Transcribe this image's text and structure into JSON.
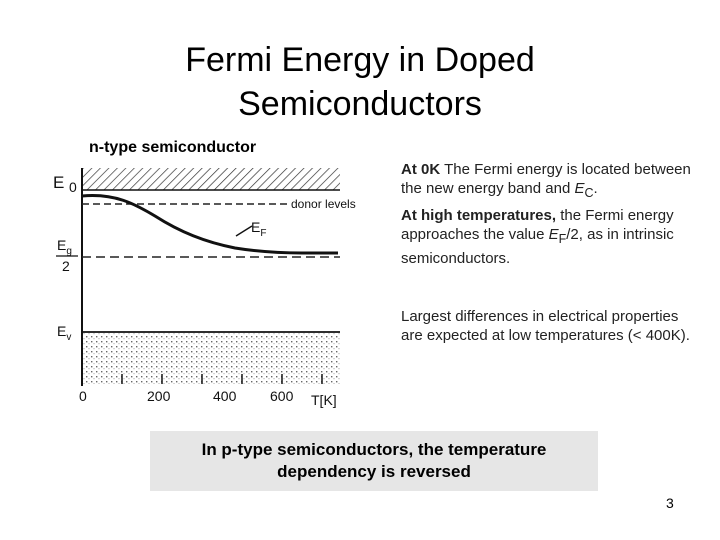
{
  "slide": {
    "title_line1": "Fermi Energy in Doped",
    "title_line2": "Semiconductors",
    "subtitle": "n-type semiconductor",
    "page_number": "3"
  },
  "diagram": {
    "axis_y_label": "E",
    "label_zero_energy": "0",
    "label_donor_levels": "donor levels",
    "label_fermi": "E",
    "label_fermi_sub": "F",
    "label_gap_num": "E",
    "label_gap_num_sub": "g",
    "label_gap_den": "2",
    "label_valence": "E",
    "label_valence_sub": "v",
    "x_ticks": [
      "0",
      "200",
      "400",
      "600"
    ],
    "x_axis_label": "T[K]"
  },
  "notes": {
    "p1_bold": "At 0K",
    "p1_a": " The Fermi energy is located between the new energy band and ",
    "p1_sym": "E",
    "p1_sub": "C",
    "p1_end": ".",
    "p2_bold": "At high temperatures,",
    "p2_a": " the Fermi energy approaches the value ",
    "p2_sym": "E",
    "p2_sub": "F",
    "p2_b": "/2, as in intrinsic semiconductors.",
    "p3": "Largest differences in electrical properties are expected at low temperatures (< 400K)."
  },
  "callout": {
    "line1": "In p-type semiconductors, the temperature",
    "line2": "dependency is reversed"
  }
}
